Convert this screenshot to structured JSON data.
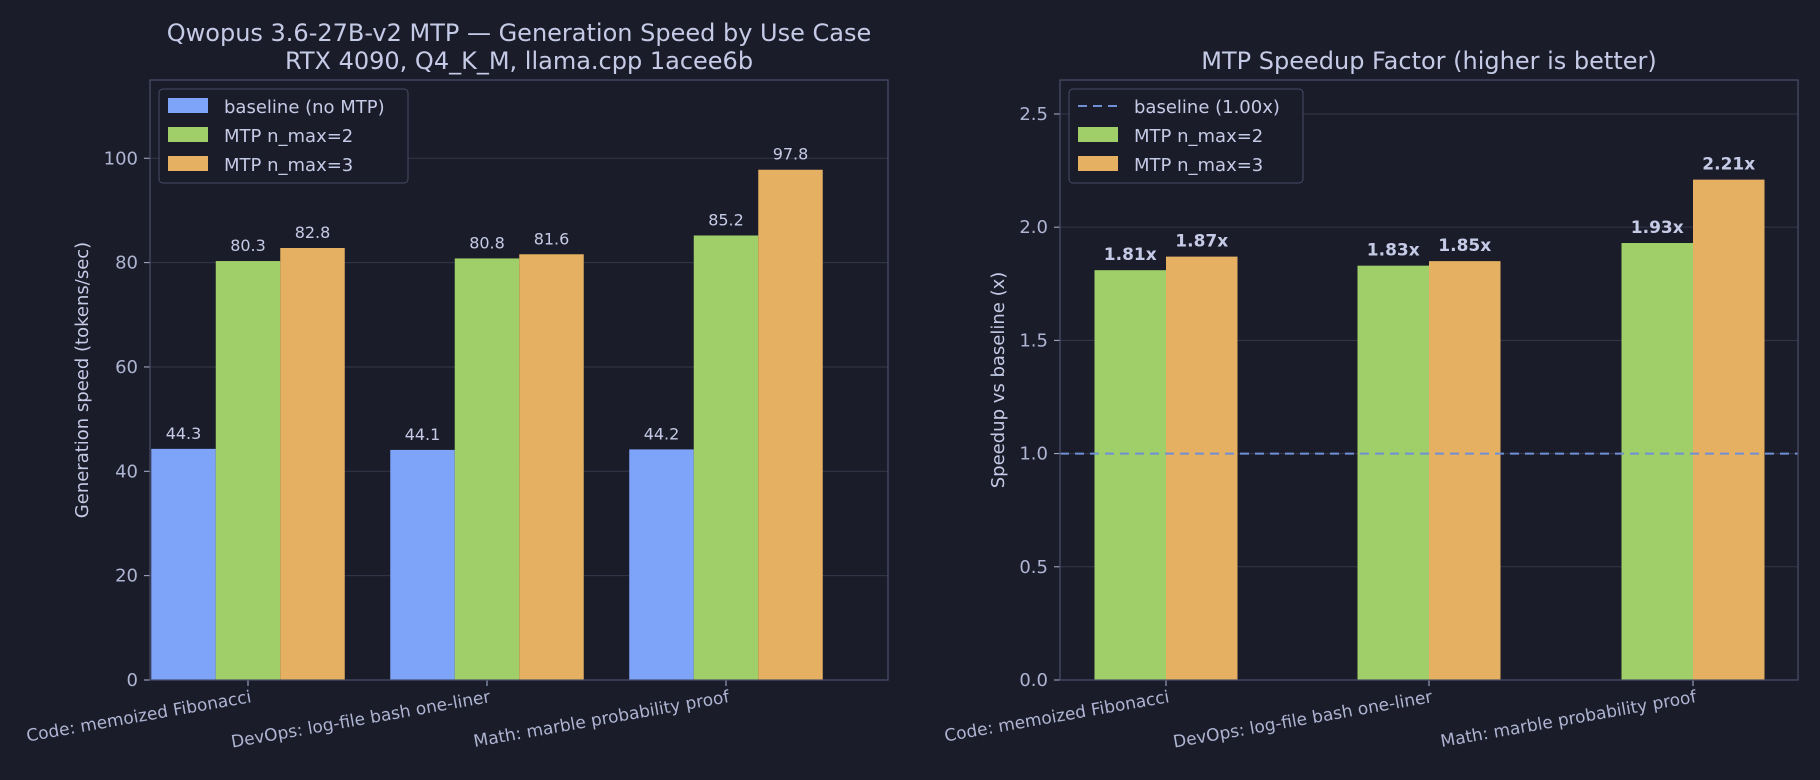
{
  "colors": {
    "background": "#1b1c29",
    "plot_frame": "#4a4f6a",
    "grid": "#34374a",
    "text": "#c5cbe6",
    "tick_text": "#aeb5d3",
    "baseline": "#7ea4fa",
    "mtp2": "#a0cf6a",
    "mtp3": "#e5b062",
    "baseline_line": "#6f8fd6"
  },
  "chart_data": [
    {
      "type": "bar",
      "title": "Qwopus 3.6-27B-v2 MTP — Generation Speed by Use Case",
      "subtitle": "RTX 4090, Q4_K_M, llama.cpp 1acee6b",
      "xlabel": "",
      "ylabel": "Generation speed (tokens/sec)",
      "ylim": [
        0,
        115
      ],
      "yticks": [
        0,
        20,
        40,
        60,
        80,
        100
      ],
      "grid": true,
      "legend": "top-left",
      "categories": [
        "Code: memoized Fibonacci",
        "DevOps: log-file bash one-liner",
        "Math: marble probability proof"
      ],
      "series": [
        {
          "name": "baseline (no MTP)",
          "color": "#7ea4fa",
          "values": [
            44.3,
            44.1,
            44.2
          ],
          "labels": [
            "44.3",
            "44.1",
            "44.2"
          ]
        },
        {
          "name": "MTP n_max=2",
          "color": "#a0cf6a",
          "values": [
            80.3,
            80.8,
            85.2
          ],
          "labels": [
            "80.3",
            "80.8",
            "85.2"
          ]
        },
        {
          "name": "MTP n_max=3",
          "color": "#e5b062",
          "values": [
            82.8,
            81.6,
            97.8
          ],
          "labels": [
            "82.8",
            "81.6",
            "97.8"
          ]
        }
      ]
    },
    {
      "type": "bar",
      "title": "MTP Speedup Factor (higher is better)",
      "xlabel": "",
      "ylabel": "Speedup vs baseline (x)",
      "ylim": [
        0,
        2.65
      ],
      "yticks": [
        "0.0",
        "0.5",
        "1.0",
        "1.5",
        "2.0",
        "2.5"
      ],
      "grid": true,
      "legend": "top-left",
      "reference_line": {
        "name": "baseline (1.00x)",
        "value": 1.0,
        "style": "dashed"
      },
      "categories": [
        "Code: memoized Fibonacci",
        "DevOps: log-file bash one-liner",
        "Math: marble probability proof"
      ],
      "series": [
        {
          "name": "MTP n_max=2",
          "color": "#a0cf6a",
          "values": [
            1.81,
            1.83,
            1.93
          ],
          "labels": [
            "1.81x",
            "1.83x",
            "1.93x"
          ]
        },
        {
          "name": "MTP n_max=3",
          "color": "#e5b062",
          "values": [
            1.87,
            1.85,
            2.21
          ],
          "labels": [
            "1.87x",
            "1.85x",
            "2.21x"
          ]
        }
      ]
    }
  ]
}
